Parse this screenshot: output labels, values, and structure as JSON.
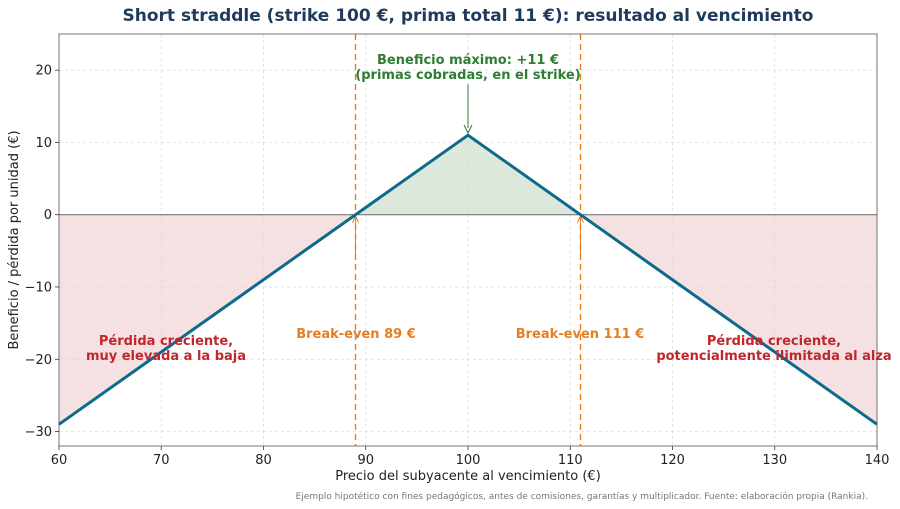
{
  "chart_data": {
    "type": "line",
    "title": "Short straddle (strike 100 €, prima total 11 €): resultado al vencimiento",
    "xlabel": "Precio del subyacente al vencimiento (€)",
    "ylabel": "Beneficio / pérdida por unidad (€)",
    "xlim": [
      60,
      140
    ],
    "ylim": [
      -32,
      25
    ],
    "xticks": [
      60,
      70,
      80,
      90,
      100,
      110,
      120,
      130,
      140
    ],
    "yticks": [
      -30,
      -20,
      -10,
      0,
      10,
      20
    ],
    "grid": true,
    "series": [
      {
        "x": [
          60,
          100,
          140
        ],
        "y": [
          -29,
          11,
          -29
        ],
        "color": "#0e6a8c"
      }
    ],
    "breakevens": [
      89,
      111
    ],
    "strike": 100,
    "max_profit": 11,
    "colors": {
      "profit_fill": "#dce8dc",
      "loss_fill": "#f5e1e1",
      "breakeven_line": "#e67e22"
    },
    "annotations": {
      "max_profit_line1": "Beneficio máximo: +11 €",
      "max_profit_line2": "(primas cobradas, en el strike)",
      "breakeven_low": "Break-even 89 €",
      "breakeven_high": "Break-even 111 €",
      "loss_low_line1": "Pérdida creciente,",
      "loss_low_line2": "muy elevada a la baja",
      "loss_high_line1": "Pérdida creciente,",
      "loss_high_line2": "potencialmente ilimitada al alza"
    },
    "footnote": "Ejemplo hipotético con fines pedagógicos, antes de comisiones, garantías y multiplicador. Fuente: elaboración propia (Rankia)."
  }
}
